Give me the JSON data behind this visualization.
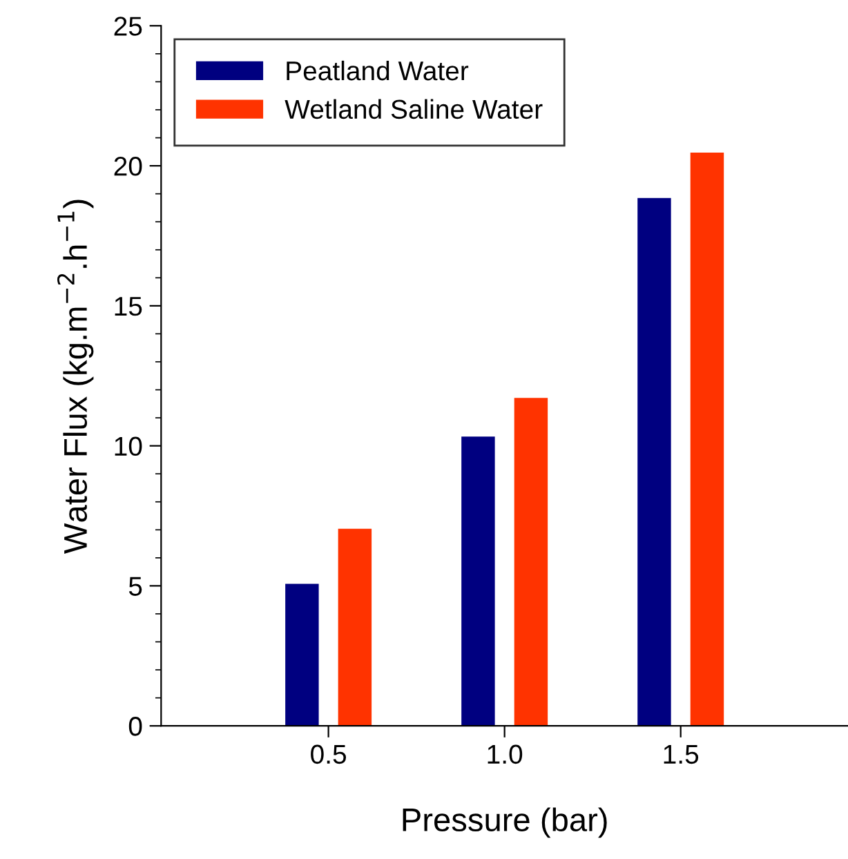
{
  "chart_data": {
    "type": "bar",
    "xlabel": "Pressure (bar)",
    "ylabel": "Water Flux (kg.m$^{−2}$.h$^{−1}$)",
    "categories": [
      "0.5",
      "1.0",
      "1.5"
    ],
    "series": [
      {
        "name": "Peatland Water",
        "color": "#000080",
        "values": [
          5.07,
          10.33,
          18.85
        ]
      },
      {
        "name": "Wetland Saline Water",
        "color": "#ff3300",
        "values": [
          7.04,
          11.71,
          20.47
        ]
      }
    ],
    "ylim": [
      0,
      25
    ],
    "yticks": [
      0,
      {
        "value": 1,
        "label": null
      },
      {
        "value": 2,
        "label": null
      },
      {
        "value": 3,
        "label": null
      },
      {
        "value": 4,
        "label": null
      },
      5,
      {
        "value": 6,
        "label": null
      },
      {
        "value": 7,
        "label": null
      },
      {
        "value": 8,
        "label": null
      },
      {
        "value": 9,
        "label": null
      },
      10,
      {
        "value": 11,
        "label": null
      },
      {
        "value": 12,
        "label": null
      },
      {
        "value": 13,
        "label": null
      },
      {
        "value": 14,
        "label": null
      },
      15,
      {
        "value": 16,
        "label": null
      },
      {
        "value": 17,
        "label": null
      },
      {
        "value": 18,
        "label": null
      },
      {
        "value": 19,
        "label": null
      },
      20,
      {
        "value": 21,
        "label": null
      },
      {
        "value": 22,
        "label": null
      },
      {
        "value": 23,
        "label": null
      },
      {
        "value": 24,
        "label": null
      },
      25
    ],
    "grid": false,
    "legend": "top left"
  }
}
